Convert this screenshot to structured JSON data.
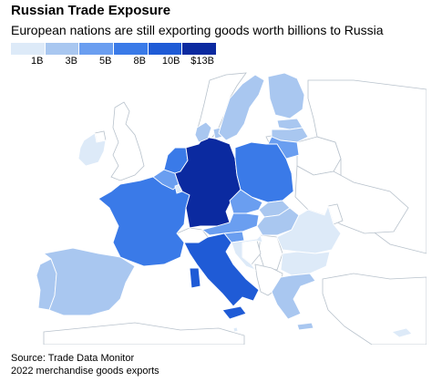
{
  "header": {
    "title": "Russian Trade Exposure",
    "subtitle": "European nations are still exporting goods worth billions to Russia"
  },
  "legend": {
    "ticks": [
      "1B",
      "3B",
      "5B",
      "8B",
      "10B",
      "$13B"
    ],
    "colors": [
      "#ddeaf8",
      "#a9c7f0",
      "#6a9ef0",
      "#3a7ae8",
      "#1f5bd6",
      "#0b2aa0"
    ]
  },
  "footer": {
    "source": "Source: Trade Data Monitor",
    "note": "2022 merchandise goods exports"
  },
  "colors": {
    "non_eu_land": "#ffffff",
    "border": "#b8c2cc",
    "sea": "#ffffff"
  },
  "regions": [
    {
      "id": "germany",
      "bucket": 5
    },
    {
      "id": "italy",
      "bucket": 4
    },
    {
      "id": "poland",
      "bucket": 3
    },
    {
      "id": "france",
      "bucket": 3
    },
    {
      "id": "netherlands",
      "bucket": 3
    },
    {
      "id": "belgium",
      "bucket": 2
    },
    {
      "id": "austria",
      "bucket": 2
    },
    {
      "id": "czechia",
      "bucket": 2
    },
    {
      "id": "spain",
      "bucket": 1
    },
    {
      "id": "lithuania",
      "bucket": 2
    },
    {
      "id": "finland",
      "bucket": 1
    },
    {
      "id": "slovenia",
      "bucket": 2
    },
    {
      "id": "hungary",
      "bucket": 1
    },
    {
      "id": "slovakia",
      "bucket": 1
    },
    {
      "id": "latvia",
      "bucket": 1
    },
    {
      "id": "estonia",
      "bucket": 1
    },
    {
      "id": "sweden",
      "bucket": 1
    },
    {
      "id": "denmark",
      "bucket": 1
    },
    {
      "id": "greece",
      "bucket": 1
    },
    {
      "id": "portugal",
      "bucket": 1
    },
    {
      "id": "ireland",
      "bucket": 0
    },
    {
      "id": "croatia",
      "bucket": 0
    },
    {
      "id": "romania",
      "bucket": 0
    },
    {
      "id": "bulgaria",
      "bucket": 0
    },
    {
      "id": "luxembourg",
      "bucket": 0
    },
    {
      "id": "cyprus",
      "bucket": 0
    },
    {
      "id": "malta",
      "bucket": 0
    }
  ]
}
